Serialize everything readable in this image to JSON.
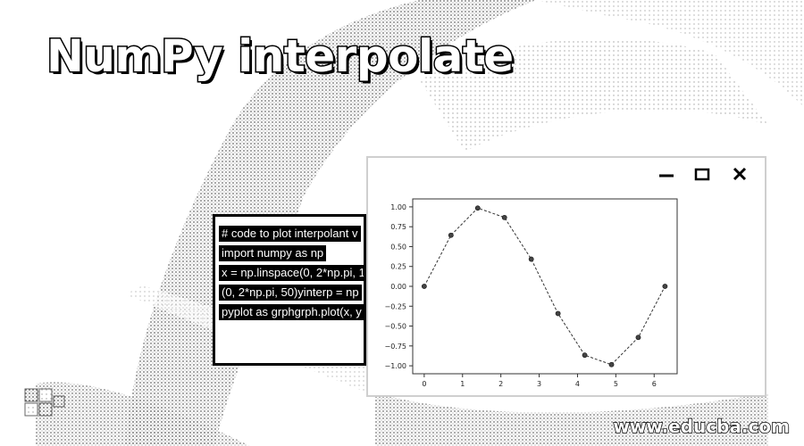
{
  "title": "NumPy interpolate",
  "code_lines": [
    "# code to plot interpolant v",
    "import numpy as np",
    "x = np.linspace(0, 2*np.pi, 1",
    "(0, 2*np.pi, 50)yinterp = np",
    "pyplot as grphgrph.plot(x, y"
  ],
  "window": {
    "minimize_icon": "minimize-icon",
    "maximize_icon": "maximize-icon",
    "close_icon": "close-icon"
  },
  "chart_data": {
    "type": "line",
    "x": [
      0,
      0.698,
      1.396,
      2.094,
      2.793,
      3.491,
      4.189,
      4.887,
      5.585,
      6.283
    ],
    "y": [
      0,
      0.643,
      0.985,
      0.866,
      0.342,
      -0.342,
      -0.866,
      -0.985,
      -0.643,
      0
    ],
    "markers": true,
    "line_style": "dashed",
    "xlim": [
      -0.3,
      6.6
    ],
    "ylim": [
      -1.1,
      1.1
    ],
    "x_ticks": [
      0,
      1,
      2,
      3,
      4,
      5,
      6
    ],
    "x_tick_labels": [
      "0",
      "1",
      "2",
      "3",
      "4",
      "5",
      "6"
    ],
    "y_ticks": [
      1.0,
      0.75,
      0.5,
      0.25,
      0.0,
      -0.25,
      -0.5,
      -0.75,
      -1.0
    ],
    "y_tick_labels": [
      "1.00",
      "0.75",
      "0.50",
      "0.25",
      "0.00",
      "−0.25",
      "−0.50",
      "−0.75",
      "−1.00"
    ],
    "grid": false,
    "title": "",
    "xlabel": "",
    "ylabel": ""
  },
  "watermark": "www.educba.com",
  "colors": {
    "line": "#333333",
    "marker": "#444444"
  }
}
